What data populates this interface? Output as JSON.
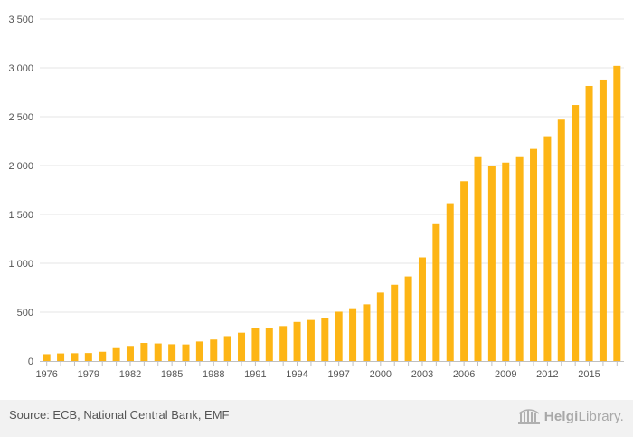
{
  "chart_data": {
    "type": "bar",
    "x": [
      1976,
      1977,
      1978,
      1979,
      1980,
      1981,
      1982,
      1983,
      1984,
      1985,
      1986,
      1987,
      1988,
      1989,
      1990,
      1991,
      1992,
      1993,
      1994,
      1995,
      1996,
      1997,
      1998,
      1999,
      2000,
      2001,
      2002,
      2003,
      2004,
      2005,
      2006,
      2007,
      2008,
      2009,
      2010,
      2011,
      2012,
      2013,
      2014,
      2015,
      2016,
      2017
    ],
    "values": [
      70,
      78,
      80,
      82,
      95,
      132,
      155,
      185,
      180,
      172,
      170,
      200,
      220,
      255,
      290,
      335,
      335,
      358,
      400,
      420,
      440,
      505,
      540,
      580,
      700,
      780,
      865,
      1060,
      1400,
      1615,
      1840,
      2095,
      2000,
      2030,
      2095,
      2170,
      2300,
      2470,
      2620,
      2815,
      2880,
      3020
    ],
    "x_tick_labels": [
      "1976",
      "1979",
      "1982",
      "1985",
      "1988",
      "1991",
      "1994",
      "1997",
      "2000",
      "2003",
      "2006",
      "2009",
      "2012",
      "2015"
    ],
    "y_ticks": [
      0,
      500,
      1000,
      1500,
      2000,
      2500,
      3000,
      3500
    ],
    "y_tick_labels": [
      "0",
      "500",
      "1 000",
      "1 500",
      "2 000",
      "2 500",
      "3 000",
      "3 500"
    ],
    "ylim": [
      0,
      3500
    ],
    "grid": true,
    "bar_color": "#FDB515",
    "title": "",
    "xlabel": "",
    "ylabel": ""
  },
  "footer": {
    "source": "Source: ECB, National Central Bank, EMF",
    "logo_bold": "Helgi",
    "logo_light": "Library."
  }
}
